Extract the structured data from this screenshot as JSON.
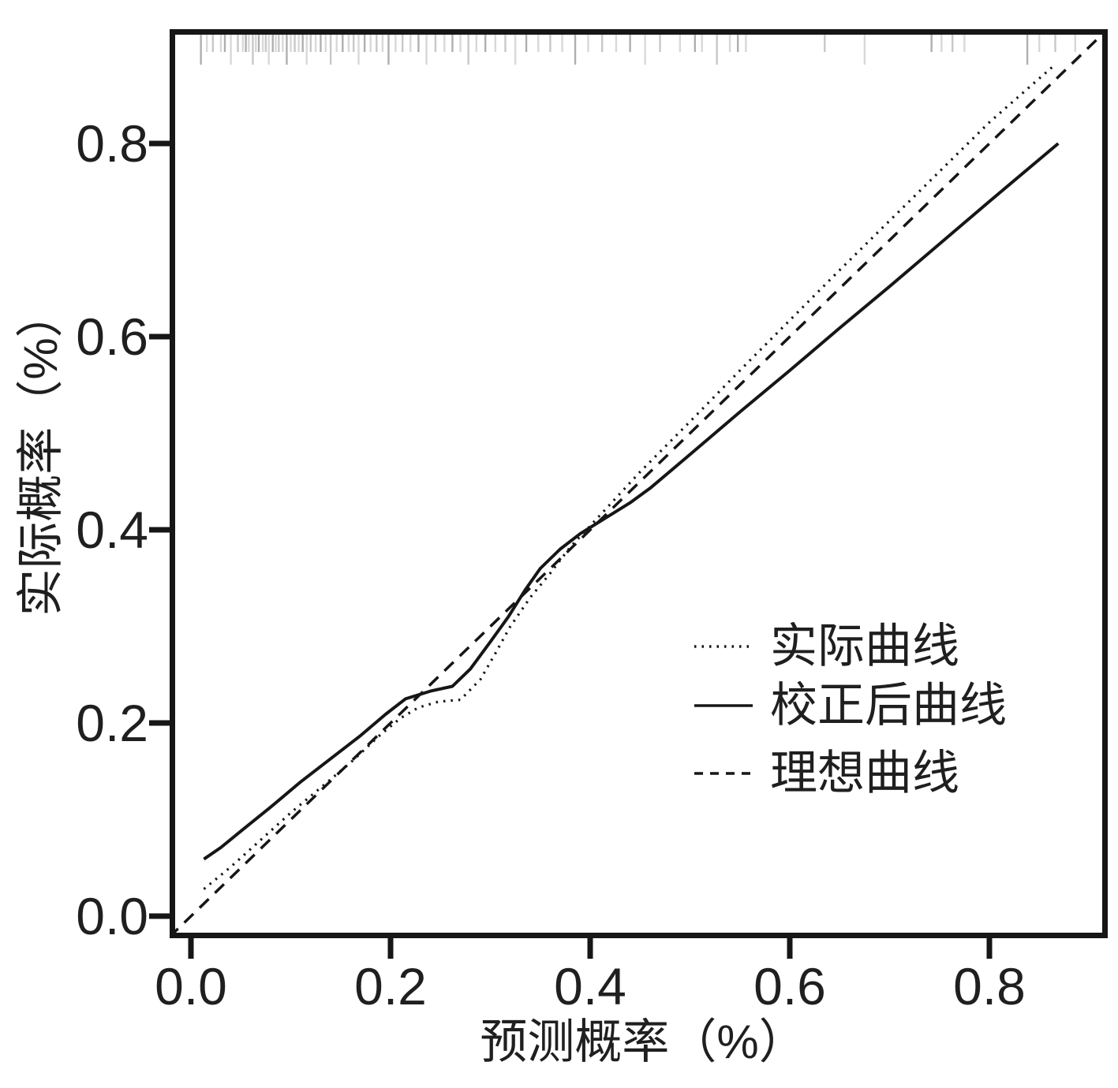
{
  "figure": {
    "background": "#ffffff",
    "line_color": "#161616",
    "text_color": "#1f1f1f",
    "rug_color": "#ababab"
  },
  "chart_data": {
    "type": "line",
    "title": "",
    "xlabel": "预测概率（%）",
    "ylabel": "实际概率（%）",
    "xlim": [
      -0.022,
      0.92
    ],
    "ylim": [
      -0.023,
      0.918
    ],
    "grid": false,
    "legend_position": "inside-right-lower",
    "x_ticks": [
      0.0,
      0.2,
      0.4,
      0.6,
      0.8
    ],
    "x_tick_labels": [
      "0.0",
      "0.2",
      "0.4",
      "0.6",
      "0.8"
    ],
    "y_ticks": [
      0.0,
      0.2,
      0.4,
      0.6,
      0.8
    ],
    "y_tick_labels": [
      "0.0",
      "0.2",
      "0.4",
      "0.6",
      "0.8"
    ],
    "series": [
      {
        "key": "actual",
        "name": "实际曲线",
        "style": "dotted",
        "points": [
          [
            0.013,
            0.028
          ],
          [
            0.04,
            0.051
          ],
          [
            0.07,
            0.079
          ],
          [
            0.1,
            0.107
          ],
          [
            0.13,
            0.133
          ],
          [
            0.16,
            0.159
          ],
          [
            0.19,
            0.188
          ],
          [
            0.21,
            0.205
          ],
          [
            0.228,
            0.216
          ],
          [
            0.248,
            0.222
          ],
          [
            0.27,
            0.224
          ],
          [
            0.29,
            0.245
          ],
          [
            0.305,
            0.272
          ],
          [
            0.32,
            0.3
          ],
          [
            0.34,
            0.33
          ],
          [
            0.36,
            0.355
          ],
          [
            0.38,
            0.382
          ],
          [
            0.4,
            0.404
          ],
          [
            0.45,
            0.46
          ],
          [
            0.5,
            0.512
          ],
          [
            0.55,
            0.565
          ],
          [
            0.6,
            0.617
          ],
          [
            0.65,
            0.669
          ],
          [
            0.7,
            0.72
          ],
          [
            0.75,
            0.771
          ],
          [
            0.8,
            0.822
          ],
          [
            0.865,
            0.881
          ]
        ]
      },
      {
        "key": "corrected",
        "name": "校正后曲线",
        "style": "solid",
        "points": [
          [
            0.013,
            0.059
          ],
          [
            0.03,
            0.071
          ],
          [
            0.05,
            0.088
          ],
          [
            0.08,
            0.113
          ],
          [
            0.11,
            0.139
          ],
          [
            0.14,
            0.163
          ],
          [
            0.17,
            0.187
          ],
          [
            0.195,
            0.209
          ],
          [
            0.215,
            0.225
          ],
          [
            0.24,
            0.233
          ],
          [
            0.262,
            0.238
          ],
          [
            0.28,
            0.256
          ],
          [
            0.3,
            0.284
          ],
          [
            0.318,
            0.31
          ],
          [
            0.335,
            0.338
          ],
          [
            0.35,
            0.36
          ],
          [
            0.37,
            0.38
          ],
          [
            0.39,
            0.396
          ],
          [
            0.415,
            0.412
          ],
          [
            0.44,
            0.428
          ],
          [
            0.46,
            0.443
          ],
          [
            0.5,
            0.478
          ],
          [
            0.55,
            0.522
          ],
          [
            0.6,
            0.565
          ],
          [
            0.65,
            0.609
          ],
          [
            0.7,
            0.652
          ],
          [
            0.75,
            0.696
          ],
          [
            0.8,
            0.74
          ],
          [
            0.869,
            0.8
          ]
        ]
      },
      {
        "key": "ideal",
        "name": "理想曲线",
        "style": "dashed",
        "points": [
          [
            -0.022,
            -0.022
          ],
          [
            0.918,
            0.918
          ]
        ]
      }
    ],
    "rug_x": [
      0.01,
      0.016,
      0.022,
      0.03,
      0.034,
      0.04,
      0.047,
      0.052,
      0.055,
      0.058,
      0.062,
      0.065,
      0.068,
      0.072,
      0.075,
      0.078,
      0.082,
      0.085,
      0.088,
      0.092,
      0.096,
      0.1,
      0.104,
      0.108,
      0.112,
      0.116,
      0.12,
      0.125,
      0.13,
      0.135,
      0.14,
      0.146,
      0.152,
      0.158,
      0.163,
      0.168,
      0.174,
      0.18,
      0.186,
      0.192,
      0.198,
      0.205,
      0.212,
      0.22,
      0.228,
      0.236,
      0.245,
      0.254,
      0.262,
      0.27,
      0.278,
      0.286,
      0.295,
      0.305,
      0.315,
      0.325,
      0.336,
      0.348,
      0.36,
      0.372,
      0.385,
      0.398,
      0.412,
      0.426,
      0.44,
      0.455,
      0.47,
      0.49,
      0.505,
      0.512,
      0.527,
      0.54,
      0.548,
      0.556,
      0.635,
      0.675,
      0.742,
      0.752,
      0.763,
      0.775,
      0.838,
      0.85,
      0.866,
      0.886
    ]
  }
}
